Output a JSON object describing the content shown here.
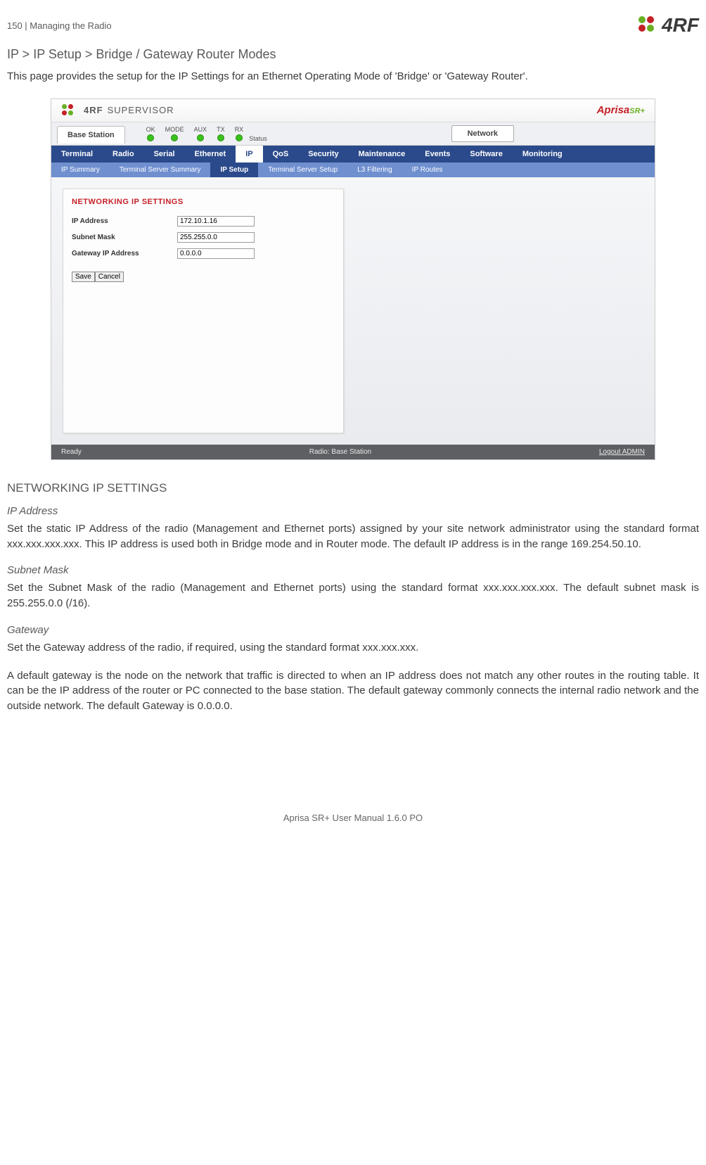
{
  "page": {
    "header_left": "150  |  Managing the Radio",
    "footer": "Aprisa SR+ User Manual 1.6.0 PO",
    "title": "IP > IP Setup > Bridge / Gateway Router Modes",
    "intro": "This page provides the setup for the IP Settings for an Ethernet Operating Mode of 'Bridge' or 'Gateway Router'."
  },
  "logo": {
    "text": "4RF",
    "dot_colors": [
      "#6ab023",
      "#c42027",
      "#c42027",
      "#6ab023"
    ]
  },
  "screenshot": {
    "supervisor_label": "SUPERVISOR",
    "aprisa_label": "Aprisa",
    "aprisa_sr": "SR+",
    "base_station_tab": "Base Station",
    "status_label": "Status",
    "network_btn": "Network",
    "leds": [
      "OK",
      "MODE",
      "AUX",
      "TX",
      "RX"
    ],
    "nav1": [
      "Terminal",
      "Radio",
      "Serial",
      "Ethernet",
      "IP",
      "QoS",
      "Security",
      "Maintenance",
      "Events",
      "Software",
      "Monitoring"
    ],
    "nav1_active_index": 4,
    "nav2": [
      "IP Summary",
      "Terminal Server Summary",
      "IP Setup",
      "Terminal Server Setup",
      "L3 Filtering",
      "IP Routes"
    ],
    "nav2_active_index": 2,
    "panel_title": "NETWORKING IP SETTINGS",
    "fields": [
      {
        "label": "IP Address",
        "value": "172.10.1.16"
      },
      {
        "label": "Subnet Mask",
        "value": "255.255.0.0"
      },
      {
        "label": "Gateway IP Address",
        "value": "0.0.0.0"
      }
    ],
    "save_btn": "Save",
    "cancel_btn": "Cancel",
    "footer_left": "Ready",
    "footer_center": "Radio: Base Station",
    "footer_right": "Logout ADMIN"
  },
  "sections": {
    "heading": "NETWORKING IP SETTINGS",
    "ip_address": {
      "title": "IP Address",
      "text": "Set the static IP Address of the radio (Management and Ethernet ports) assigned by your site network administrator using the standard format xxx.xxx.xxx.xxx. This IP address is used both in Bridge mode and in Router mode. The default IP address is in the range 169.254.50.10."
    },
    "subnet": {
      "title": "Subnet Mask",
      "text": "Set the Subnet Mask of the radio (Management and Ethernet ports) using the standard format xxx.xxx.xxx.xxx. The default subnet mask is 255.255.0.0 (/16)."
    },
    "gateway": {
      "title": "Gateway",
      "text1": "Set the Gateway address of the radio, if required, using the standard format xxx.xxx.xxx.",
      "text2": "A default gateway is the node on the network that traffic is directed to when an IP address does not match any other routes in the routing table. It can be the IP address of the router or PC connected to the base station. The default gateway commonly connects the internal radio network and the outside network. The default Gateway is 0.0.0.0."
    }
  }
}
